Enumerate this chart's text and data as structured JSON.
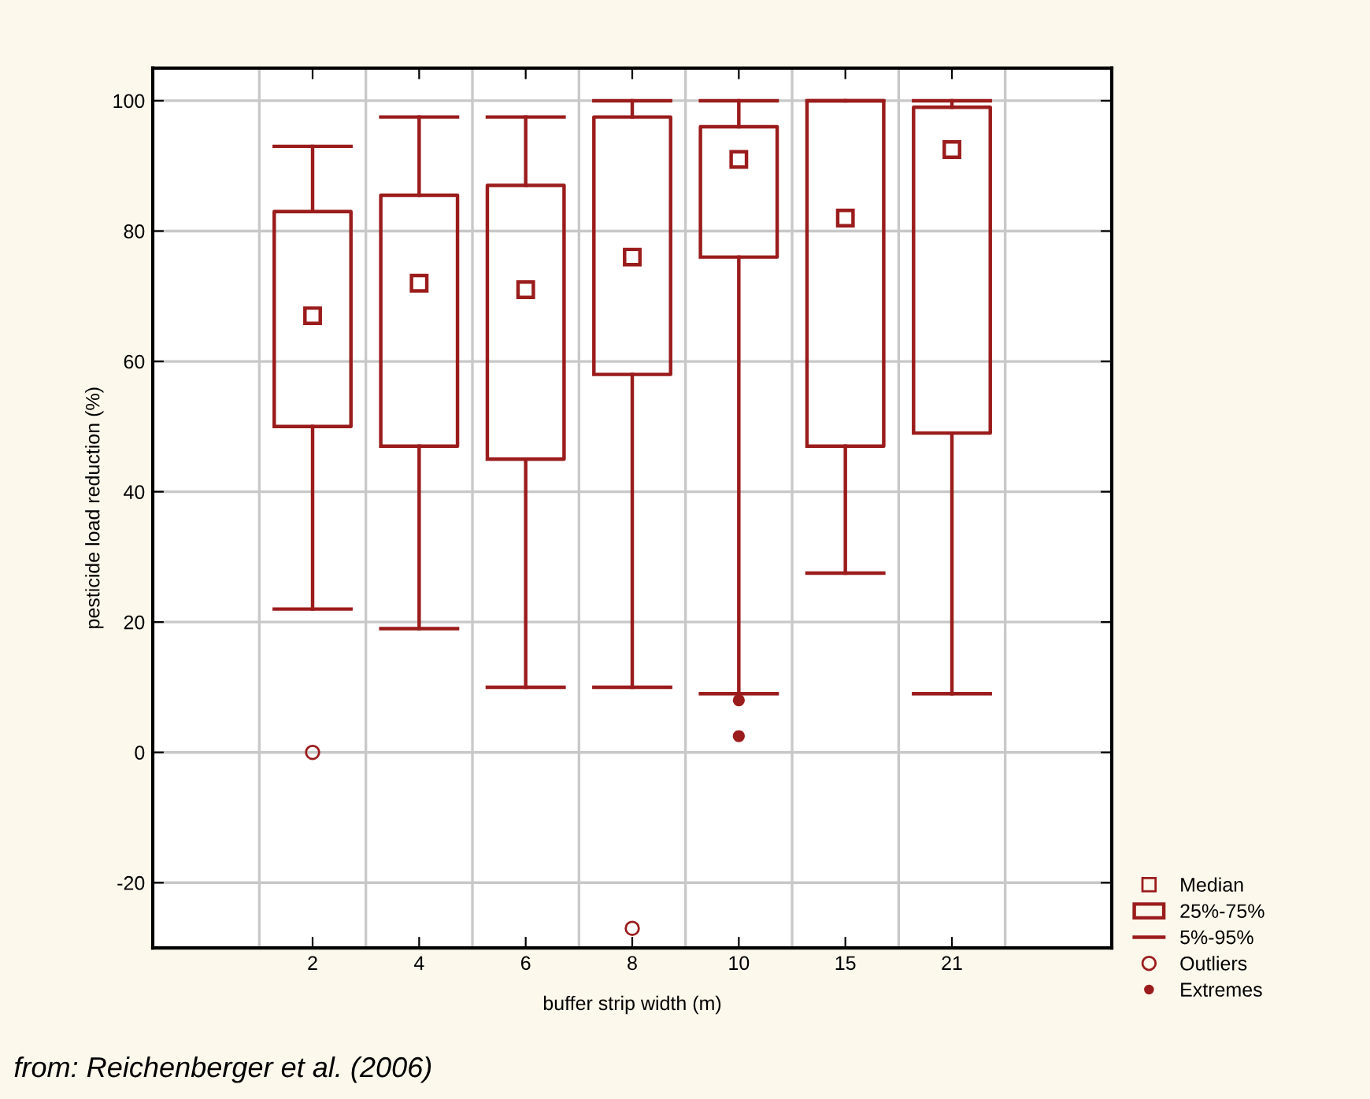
{
  "chart_data": {
    "type": "box",
    "xlabel": "buffer strip width (m)",
    "ylabel": "pesticide load reduction (%)",
    "categories": [
      "2",
      "4",
      "6",
      "8",
      "10",
      "15",
      "21"
    ],
    "ylim": [
      -30,
      105
    ],
    "yticks": [
      -20,
      0,
      20,
      40,
      60,
      80,
      100
    ],
    "grid": true,
    "legend": "bottom right",
    "marker": "square",
    "series": [
      {
        "color": "#9b1c1c",
        "boxes": [
          {
            "low": 22,
            "q1": 50,
            "median": 67,
            "q3": 83,
            "high": 93,
            "outliers": [
              0
            ]
          },
          {
            "low": 19,
            "q1": 47,
            "median": 72,
            "q3": 85.5,
            "high": 97.5
          },
          {
            "low": 10,
            "q1": 45,
            "median": 71,
            "q3": 87,
            "high": 97.5
          },
          {
            "low": 10,
            "q1": 58,
            "median": 76,
            "q3": 97.5,
            "high": 100,
            "outliers": [
              -27
            ]
          },
          {
            "low": 9,
            "q1": 76,
            "median": 91,
            "q3": 96,
            "high": 100
          },
          {
            "low": 27.5,
            "q1": 47,
            "median": 82,
            "q3": 100,
            "high": 100
          },
          {
            "low": 9,
            "q1": 49,
            "median": 92.5,
            "q3": 99,
            "high": 100
          }
        ]
      },
      {
        "type": "scatter",
        "name": "Extremes",
        "color": "#9b1c1c",
        "marker": "circle",
        "x": [
          "10",
          "10"
        ],
        "values": [
          8,
          2.5
        ]
      }
    ],
    "annotations": [
      "from: Reichenberger et al. (2006)",
      "Median",
      "25%-75%",
      "5%-95%",
      "Outliers"
    ]
  }
}
